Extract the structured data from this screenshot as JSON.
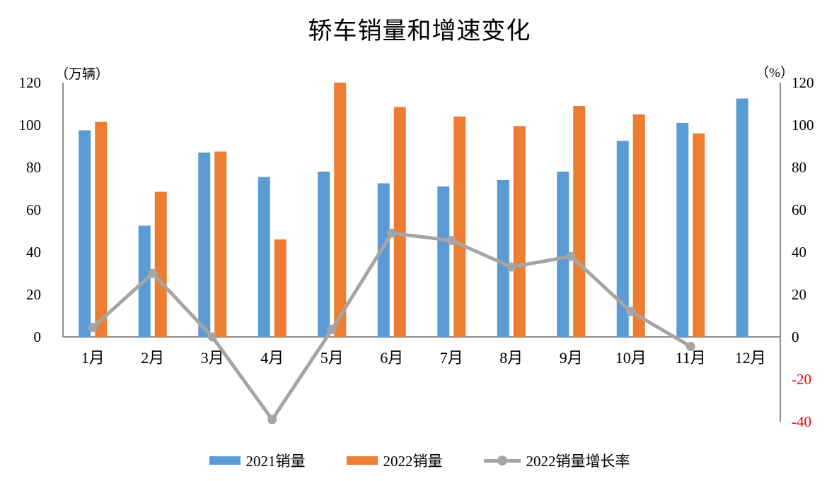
{
  "chart_data": {
    "type": "combo-bar-line",
    "title": "轿车销量和增速变化",
    "categories": [
      "1月",
      "2月",
      "3月",
      "4月",
      "5月",
      "6月",
      "7月",
      "8月",
      "9月",
      "10月",
      "11月",
      "12月"
    ],
    "series": [
      {
        "name": "2021销量",
        "type": "bar",
        "axis": "left",
        "color": "#5B9BD5",
        "values": [
          97.5,
          52.5,
          87,
          75.5,
          78,
          72.5,
          71,
          74,
          78,
          92.5,
          101,
          112.5
        ]
      },
      {
        "name": "2022销量",
        "type": "bar",
        "axis": "left",
        "color": "#ED7D31",
        "values": [
          101.5,
          68.5,
          87.5,
          46,
          120,
          108.5,
          104,
          99.5,
          109,
          105,
          96,
          null
        ]
      },
      {
        "name": "2022销量增长率",
        "type": "line",
        "axis": "right",
        "color": "#A5A5A5",
        "values": [
          4.5,
          30,
          0,
          -39,
          3.5,
          49,
          45.5,
          33,
          38,
          12,
          -4.5,
          null
        ]
      }
    ],
    "left_axis": {
      "label": "（万辆）",
      "min": 0,
      "max": 120,
      "step": 20,
      "ticks": [
        0,
        20,
        40,
        60,
        80,
        100,
        120
      ]
    },
    "right_axis": {
      "label": "（%）",
      "min": -40,
      "max": 120,
      "step": 20,
      "ticks": [
        -40,
        -20,
        0,
        20,
        40,
        60,
        80,
        100,
        120
      ],
      "negative_tick_color": "#FF0000",
      "positive_tick_color": "#000000"
    },
    "legend_position": "bottom",
    "grid": "off",
    "colors": {
      "axis_line": "#8C8C8C",
      "background": "#FFFFFF"
    }
  }
}
